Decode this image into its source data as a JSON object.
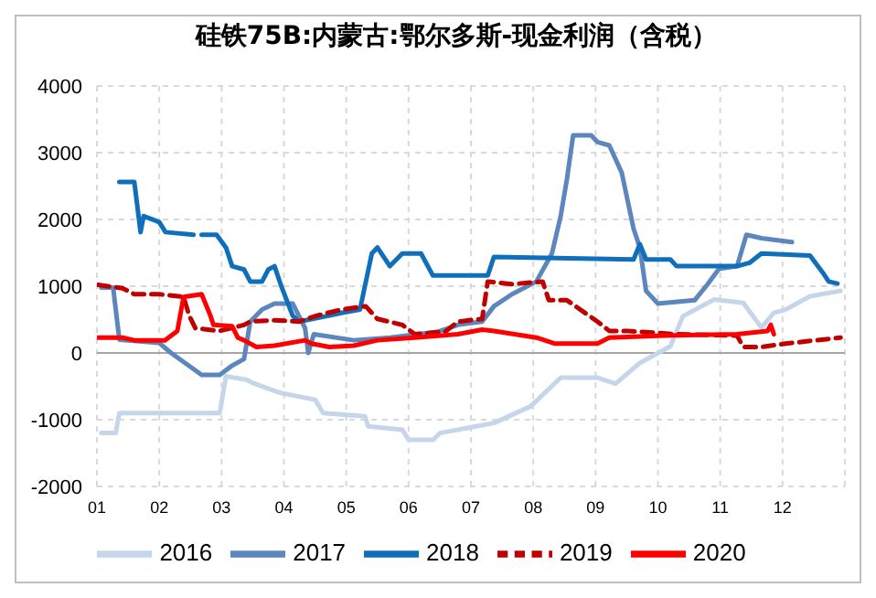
{
  "chart_data": {
    "type": "line",
    "title": "硅铁75B:内蒙古:鄂尔多斯-现金利润（含税）",
    "xlim": [
      1,
      13
    ],
    "xticks": [
      {
        "value": 1,
        "label": "01"
      },
      {
        "value": 2,
        "label": "02"
      },
      {
        "value": 3,
        "label": "03"
      },
      {
        "value": 4,
        "label": "04"
      },
      {
        "value": 5,
        "label": "05"
      },
      {
        "value": 6,
        "label": "06"
      },
      {
        "value": 7,
        "label": "07"
      },
      {
        "value": 8,
        "label": "08"
      },
      {
        "value": 9,
        "label": "09"
      },
      {
        "value": 10,
        "label": "10"
      },
      {
        "value": 11,
        "label": "11"
      },
      {
        "value": 12,
        "label": "12"
      }
    ],
    "ylim": [
      -2000,
      4000
    ],
    "yticks": [
      -2000,
      -1000,
      0,
      1000,
      2000,
      3000,
      4000
    ],
    "grid": true,
    "legend": "bottom",
    "marker": "none",
    "ref_lines": [
      {
        "axis": "y",
        "value": 0,
        "color": "#a6a6a6"
      }
    ],
    "series": [
      {
        "name": "2016",
        "color": "#c5d5ea",
        "line_style": "solid",
        "x": [
          1.07,
          1.3,
          1.36,
          2.97,
          3.07,
          3.4,
          3.5,
          3.95,
          4.5,
          4.63,
          5.3,
          5.35,
          5.9,
          6.0,
          6.4,
          6.5,
          7.37,
          7.96,
          8.44,
          9.03,
          9.32,
          9.71,
          10.2,
          10.4,
          10.9,
          11.37,
          11.66,
          11.86,
          12.05,
          12.44,
          12.93
        ],
        "values": [
          -1200,
          -1200,
          -900,
          -900,
          -350,
          -400,
          -450,
          -600,
          -700,
          -900,
          -950,
          -1100,
          -1150,
          -1300,
          -1300,
          -1200,
          -1050,
          -800,
          -370,
          -370,
          -460,
          -150,
          100,
          550,
          800,
          750,
          380,
          600,
          650,
          850,
          930
        ]
      },
      {
        "name": "2017",
        "color": "#5b86be",
        "line_style": "solid",
        "x": [
          1.07,
          1.26,
          1.36,
          2.0,
          2.19,
          2.68,
          2.97,
          3.17,
          3.36,
          3.46,
          3.65,
          3.85,
          4.14,
          4.34,
          4.39,
          4.48,
          5.12,
          5.7,
          6.48,
          6.79,
          7.18,
          7.37,
          7.66,
          8.05,
          8.3,
          8.44,
          8.54,
          8.64,
          8.93,
          9.03,
          9.22,
          9.42,
          9.61,
          9.71,
          9.81,
          10.0,
          10.59,
          10.79,
          10.98,
          11.27,
          11.42,
          11.66,
          12.15
        ],
        "values": [
          980,
          980,
          200,
          150,
          0,
          -330,
          -330,
          -190,
          -90,
          470,
          650,
          740,
          740,
          370,
          0,
          280,
          190,
          230,
          320,
          420,
          470,
          700,
          880,
          1070,
          1490,
          2050,
          2600,
          3260,
          3260,
          3160,
          3110,
          2700,
          1860,
          1580,
          930,
          740,
          790,
          1020,
          1260,
          1300,
          1770,
          1720,
          1660
        ]
      },
      {
        "name": "2018",
        "color": "#0f6fba",
        "line_style": "solid",
        "x": [
          1.36,
          1.6,
          1.7,
          1.75,
          2.0,
          2.1,
          2.55,
          2.6,
          2.68,
          2.92,
          3.07,
          3.17,
          3.36,
          3.46,
          3.65,
          3.75,
          3.85,
          3.95,
          4.14,
          4.24,
          4.73,
          4.92,
          5.22,
          5.41,
          5.5,
          5.7,
          5.9,
          6.2,
          6.39,
          7.27,
          7.37,
          9.61,
          9.71,
          9.81,
          10.2,
          10.3,
          11.27,
          11.47,
          11.66,
          12.44,
          12.64,
          12.74,
          12.88
        ],
        "values": [
          2560,
          2560,
          1810,
          2050,
          1960,
          1810,
          1770,
          null,
          1770,
          1770,
          1580,
          1300,
          1250,
          1070,
          1070,
          1250,
          1300,
          1020,
          560,
          470,
          560,
          600,
          650,
          1490,
          1580,
          1300,
          1490,
          1490,
          1160,
          1160,
          1440,
          1400,
          1630,
          1400,
          1400,
          1300,
          1300,
          1350,
          1490,
          1460,
          1210,
          1070,
          1040
        ]
      },
      {
        "name": "2019",
        "color": "#c00000",
        "line_style": "dashed",
        "x": [
          1.02,
          1.41,
          1.6,
          2.0,
          2.39,
          2.48,
          2.58,
          2.97,
          3.36,
          3.46,
          3.85,
          4.24,
          4.53,
          4.92,
          5.31,
          5.5,
          5.9,
          6.1,
          6.59,
          6.79,
          7.18,
          7.27,
          7.66,
          8.15,
          8.25,
          8.54,
          9.03,
          9.22,
          9.52,
          10.3,
          11.27,
          11.37,
          11.66,
          12.05,
          12.93
        ],
        "values": [
          1020,
          970,
          880,
          880,
          840,
          560,
          370,
          330,
          420,
          470,
          490,
          470,
          560,
          650,
          700,
          510,
          420,
          280,
          320,
          470,
          510,
          1070,
          1030,
          1070,
          790,
          790,
          470,
          330,
          330,
          280,
          260,
          90,
          90,
          140,
          230
        ]
      },
      {
        "name": "2020",
        "color": "#ff0000",
        "line_style": "solid",
        "x": [
          1.02,
          1.41,
          1.6,
          2.09,
          2.29,
          2.39,
          2.68,
          2.82,
          2.87,
          3.17,
          3.26,
          3.36,
          3.56,
          3.85,
          4.34,
          4.44,
          4.73,
          5.12,
          5.5,
          6.1,
          6.79,
          7.18,
          7.37,
          8.05,
          8.35,
          9.03,
          9.22,
          10.1,
          11.27,
          11.76,
          11.81,
          11.86
        ],
        "values": [
          230,
          230,
          190,
          190,
          330,
          840,
          880,
          560,
          420,
          400,
          230,
          190,
          90,
          110,
          190,
          140,
          90,
          110,
          190,
          230,
          280,
          350,
          330,
          230,
          140,
          140,
          230,
          260,
          280,
          330,
          420,
          280
        ]
      }
    ]
  }
}
